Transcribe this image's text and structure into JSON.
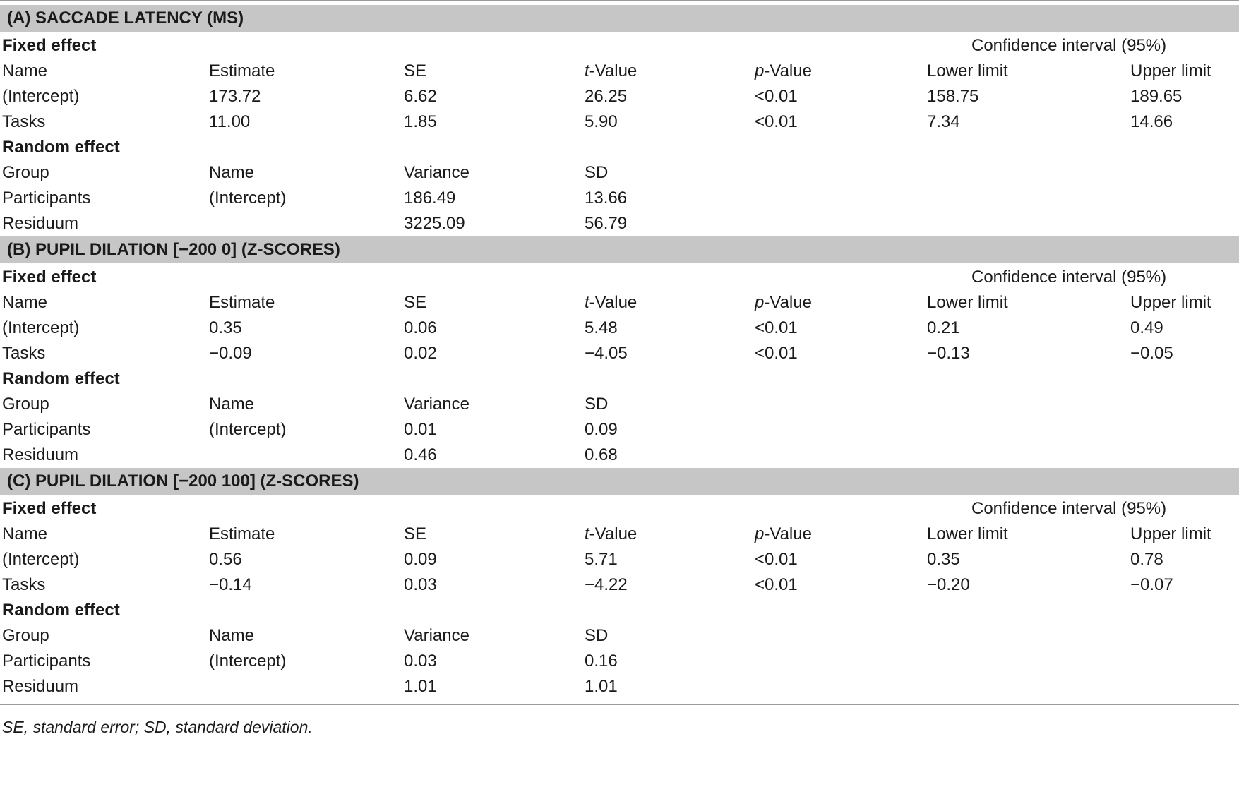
{
  "sections": [
    {
      "title": "(A) SACCADE LATENCY (MS)",
      "fixed": {
        "label": "Fixed effect",
        "ci_label": "Confidence interval (95%)",
        "headers": [
          "Name",
          "Estimate",
          "SE",
          "t-Value",
          "p-Value",
          "Lower limit",
          "Upper limit"
        ],
        "rows": [
          [
            "(Intercept)",
            "173.72",
            "6.62",
            "26.25",
            "<0.01",
            "158.75",
            "189.65"
          ],
          [
            "Tasks",
            "11.00",
            "1.85",
            "5.90",
            "<0.01",
            "7.34",
            "14.66"
          ]
        ]
      },
      "random": {
        "label": "Random effect",
        "headers": [
          "Group",
          "Name",
          "Variance",
          "SD"
        ],
        "rows": [
          [
            "Participants",
            "(Intercept)",
            "186.49",
            "13.66"
          ],
          [
            "Residuum",
            "",
            "3225.09",
            "56.79"
          ]
        ]
      }
    },
    {
      "title": "(B) PUPIL DILATION [−200 0] (Z-SCORES)",
      "fixed": {
        "label": "Fixed effect",
        "ci_label": "Confidence interval (95%)",
        "headers": [
          "Name",
          "Estimate",
          "SE",
          "t-Value",
          "p-Value",
          "Lower limit",
          "Upper limit"
        ],
        "rows": [
          [
            "(Intercept)",
            "0.35",
            "0.06",
            "5.48",
            "<0.01",
            "0.21",
            "0.49"
          ],
          [
            "Tasks",
            "−0.09",
            "0.02",
            "−4.05",
            "<0.01",
            "−0.13",
            "−0.05"
          ]
        ]
      },
      "random": {
        "label": "Random effect",
        "headers": [
          "Group",
          "Name",
          "Variance",
          "SD"
        ],
        "rows": [
          [
            "Participants",
            "(Intercept)",
            "0.01",
            "0.09"
          ],
          [
            "Residuum",
            "",
            "0.46",
            "0.68"
          ]
        ]
      }
    },
    {
      "title": "(C) PUPIL DILATION [−200 100] (Z-SCORES)",
      "fixed": {
        "label": "Fixed effect",
        "ci_label": "Confidence interval (95%)",
        "headers": [
          "Name",
          "Estimate",
          "SE",
          "t-Value",
          "p-Value",
          "Lower limit",
          "Upper limit"
        ],
        "rows": [
          [
            "(Intercept)",
            "0.56",
            "0.09",
            "5.71",
            "<0.01",
            "0.35",
            "0.78"
          ],
          [
            "Tasks",
            "−0.14",
            "0.03",
            "−4.22",
            "<0.01",
            "−0.20",
            "−0.07"
          ]
        ]
      },
      "random": {
        "label": "Random effect",
        "headers": [
          "Group",
          "Name",
          "Variance",
          "SD"
        ],
        "rows": [
          [
            "Participants",
            "(Intercept)",
            "0.03",
            "0.16"
          ],
          [
            "Residuum",
            "",
            "1.01",
            "1.01"
          ]
        ]
      }
    }
  ],
  "footnote": "SE, standard error; SD, standard deviation."
}
